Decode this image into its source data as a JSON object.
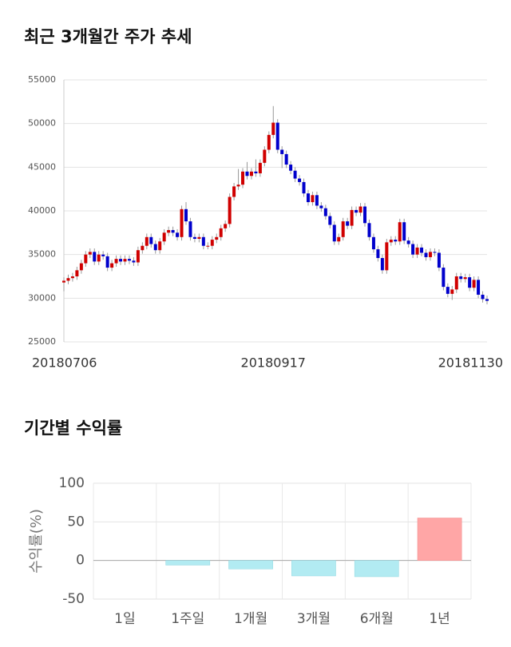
{
  "chart_data": [
    {
      "type": "candlestick",
      "title": "최근 3개월간 주가 추세",
      "categories": [
        "20180706",
        null,
        null,
        null,
        null,
        null,
        null,
        null,
        null,
        null,
        null,
        null,
        null,
        null,
        null,
        null,
        null,
        null,
        null,
        null,
        null,
        null,
        null,
        null,
        null,
        null,
        null,
        null,
        null,
        null,
        null,
        null,
        null,
        null,
        null,
        null,
        null,
        null,
        null,
        null,
        null,
        null,
        null,
        null,
        null,
        null,
        null,
        null,
        "20180917",
        null,
        null,
        null,
        null,
        null,
        null,
        null,
        null,
        null,
        null,
        null,
        null,
        null,
        null,
        null,
        null,
        null,
        null,
        null,
        null,
        null,
        null,
        null,
        null,
        null,
        null,
        null,
        null,
        null,
        null,
        null,
        null,
        null,
        null,
        null,
        null,
        null,
        null,
        null,
        null,
        null,
        null,
        null,
        null,
        null,
        null,
        null,
        null,
        "20181130"
      ],
      "open": [
        31800,
        32000,
        32300,
        32500,
        33200,
        34000,
        35000,
        35300,
        34200,
        35000,
        34800,
        33500,
        34000,
        34500,
        34200,
        34500,
        34300,
        34100,
        35500,
        36000,
        37000,
        36200,
        35500,
        36500,
        37500,
        37800,
        37500,
        37000,
        40200,
        38800,
        37000,
        36800,
        37000,
        36000,
        36000,
        36700,
        37000,
        38000,
        38500,
        41600,
        42800,
        43000,
        44500,
        44000,
        44500,
        44300,
        45500,
        47000,
        48700,
        50100,
        47000,
        46500,
        45300,
        44600,
        43700,
        43300,
        42000,
        41000,
        41800,
        40600,
        40300,
        39400,
        38400,
        36500,
        37000,
        38800,
        38300,
        40100,
        39800,
        40500,
        38600,
        37000,
        35600,
        34600,
        33200,
        36400,
        36700,
        36500,
        38700,
        36600,
        36200,
        35000,
        35800,
        35200,
        34700,
        35300,
        35200,
        33500,
        31300,
        30500,
        31000,
        32500,
        32200,
        32400,
        31200,
        32100,
        30400,
        29900
      ],
      "high": [
        32400,
        32700,
        32900,
        33600,
        34400,
        35400,
        35700,
        35700,
        35400,
        35400,
        35200,
        34400,
        34900,
        34900,
        34900,
        34900,
        34700,
        35900,
        36400,
        37400,
        37400,
        36600,
        36900,
        37900,
        38200,
        38200,
        37900,
        40600,
        41000,
        39200,
        37400,
        37400,
        37400,
        36400,
        37100,
        37400,
        38400,
        38900,
        42000,
        43200,
        44800,
        44900,
        45600,
        44900,
        45900,
        45900,
        47400,
        49100,
        52000,
        50500,
        47400,
        46900,
        45700,
        45000,
        44100,
        43700,
        42400,
        42200,
        42200,
        41000,
        40700,
        39800,
        38800,
        37400,
        39200,
        39200,
        40500,
        40500,
        40900,
        40900,
        39000,
        37400,
        36000,
        35000,
        36800,
        37100,
        37100,
        39100,
        39100,
        37000,
        36600,
        36200,
        36200,
        35600,
        35700,
        35700,
        35600,
        33900,
        31700,
        31400,
        32900,
        32900,
        32800,
        32800,
        32500,
        32500,
        30800,
        30300
      ],
      "low": [
        30800,
        31600,
        31900,
        32100,
        32800,
        33600,
        34600,
        33800,
        33800,
        34400,
        33100,
        33100,
        33600,
        33800,
        33800,
        33900,
        33700,
        33700,
        35100,
        35600,
        35800,
        35100,
        35100,
        36100,
        37100,
        37100,
        36600,
        36600,
        38400,
        36600,
        36400,
        36400,
        35600,
        35600,
        35600,
        36300,
        36600,
        37600,
        38100,
        41200,
        42400,
        42600,
        43600,
        43600,
        43900,
        43900,
        45100,
        46600,
        48300,
        46600,
        44900,
        44900,
        44200,
        43300,
        42900,
        41600,
        40600,
        40600,
        40200,
        39900,
        39000,
        38000,
        36100,
        36100,
        36600,
        37900,
        37900,
        39400,
        39400,
        38200,
        36600,
        35200,
        34200,
        32800,
        32800,
        36000,
        36100,
        36100,
        36200,
        35800,
        34600,
        34600,
        34800,
        34300,
        34300,
        34800,
        33100,
        30900,
        30100,
        29800,
        30600,
        31800,
        31800,
        30800,
        30800,
        30000,
        29500,
        29300
      ],
      "close": [
        32000,
        32300,
        32500,
        33200,
        34000,
        35000,
        35300,
        34200,
        35000,
        34800,
        33500,
        34000,
        34500,
        34200,
        34500,
        34300,
        34100,
        35500,
        36000,
        37000,
        36200,
        35500,
        36500,
        37500,
        37800,
        37500,
        37000,
        40200,
        38800,
        37000,
        36800,
        37000,
        36000,
        36000,
        36700,
        37000,
        38000,
        38500,
        41600,
        42800,
        43000,
        44500,
        44000,
        44500,
        44300,
        45500,
        47000,
        48700,
        50100,
        47000,
        46500,
        45300,
        44600,
        43700,
        43300,
        42000,
        41000,
        41800,
        40600,
        40300,
        39400,
        38400,
        36500,
        37000,
        38800,
        38300,
        40100,
        39800,
        40500,
        38600,
        37000,
        35600,
        34600,
        33200,
        36400,
        36700,
        36500,
        38700,
        36600,
        36200,
        35000,
        35800,
        35200,
        34700,
        35300,
        35200,
        33500,
        31300,
        30500,
        31000,
        32500,
        32200,
        32400,
        31200,
        32100,
        30400,
        29900,
        29700
      ],
      "up_color": "#d00000",
      "down_color": "#0000cc",
      "ylim": [
        25000,
        55000
      ],
      "yticks": [
        25000,
        30000,
        35000,
        40000,
        45000,
        50000,
        55000
      ],
      "grid": true
    },
    {
      "type": "bar",
      "title": "기간별 수익률",
      "ylabel": "수익률(%)",
      "categories": [
        "1일",
        "1주일",
        "1개월",
        "3개월",
        "6개월",
        "1년"
      ],
      "values": [
        0,
        -6,
        -11,
        -20,
        -21,
        55
      ],
      "positive_color": "#ffa6a6",
      "negative_color": "#b2ebf2",
      "ylim": [
        -50,
        100
      ],
      "yticks": [
        -50,
        0,
        50,
        100
      ],
      "grid": true
    }
  ]
}
